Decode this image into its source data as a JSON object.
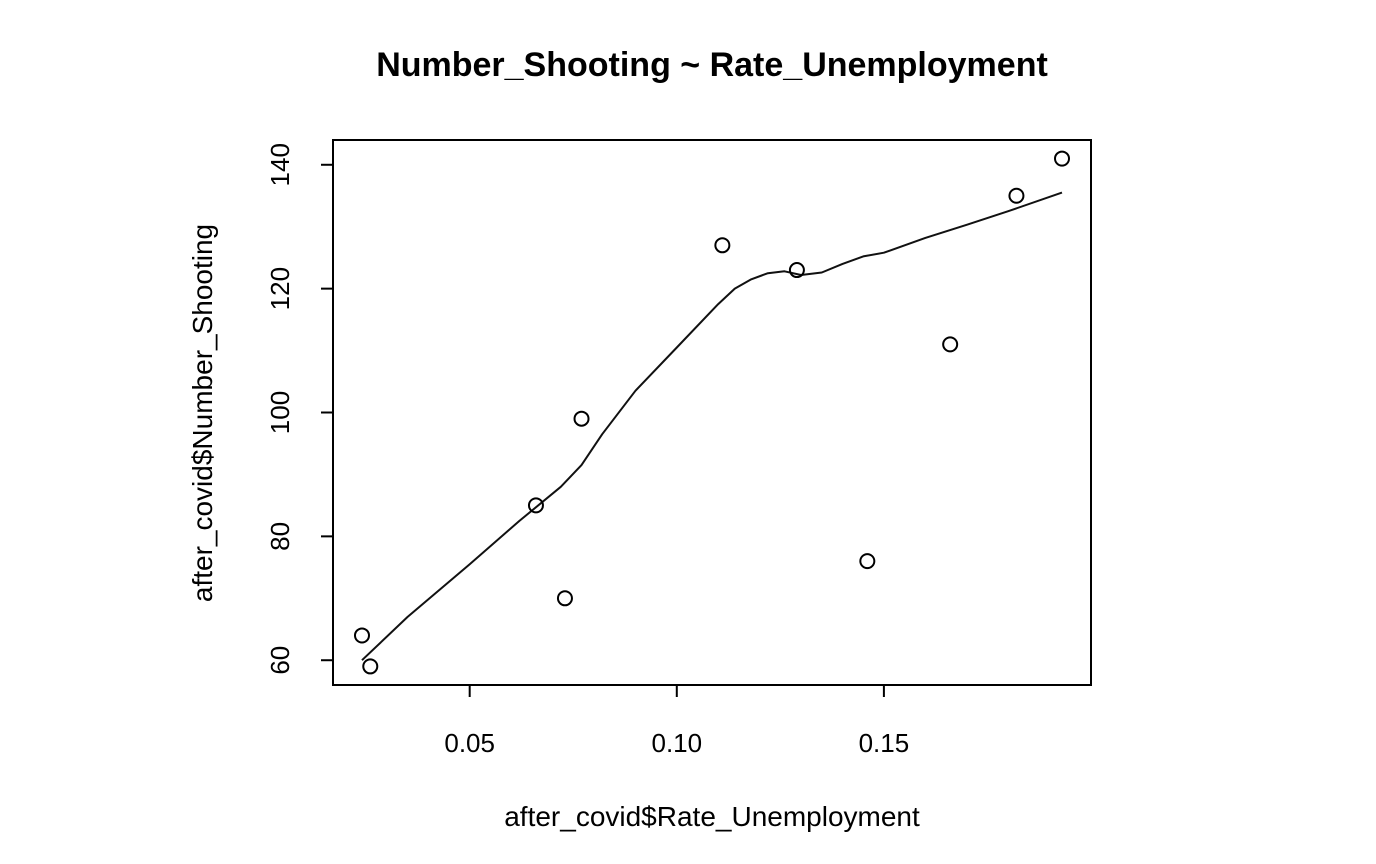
{
  "chart_data": {
    "type": "scatter",
    "title": "Number_Shooting ~ Rate_Unemployment",
    "xlabel": "after_covid$Rate_Unemployment",
    "ylabel": "after_covid$Number_Shooting",
    "xlim": [
      0.017,
      0.2
    ],
    "ylim": [
      56,
      144
    ],
    "x_ticks": [
      0.05,
      0.1,
      0.15
    ],
    "x_tick_labels": [
      "0.05",
      "0.10",
      "0.15"
    ],
    "y_ticks": [
      60,
      80,
      100,
      120,
      140
    ],
    "y_tick_labels": [
      "60",
      "80",
      "100",
      "120",
      "140"
    ],
    "grid": false,
    "points": [
      {
        "x": 0.024,
        "y": 64
      },
      {
        "x": 0.026,
        "y": 59
      },
      {
        "x": 0.066,
        "y": 85
      },
      {
        "x": 0.073,
        "y": 70
      },
      {
        "x": 0.077,
        "y": 99
      },
      {
        "x": 0.111,
        "y": 127
      },
      {
        "x": 0.129,
        "y": 123
      },
      {
        "x": 0.146,
        "y": 76
      },
      {
        "x": 0.166,
        "y": 111
      },
      {
        "x": 0.182,
        "y": 135
      },
      {
        "x": 0.193,
        "y": 141
      }
    ],
    "smooth_line": [
      {
        "x": 0.024,
        "y": 60
      },
      {
        "x": 0.035,
        "y": 67
      },
      {
        "x": 0.05,
        "y": 75.5
      },
      {
        "x": 0.062,
        "y": 82.5
      },
      {
        "x": 0.072,
        "y": 88
      },
      {
        "x": 0.077,
        "y": 91.5
      },
      {
        "x": 0.082,
        "y": 96.5
      },
      {
        "x": 0.09,
        "y": 103.5
      },
      {
        "x": 0.1,
        "y": 110.5
      },
      {
        "x": 0.11,
        "y": 117.5
      },
      {
        "x": 0.114,
        "y": 120
      },
      {
        "x": 0.118,
        "y": 121.5
      },
      {
        "x": 0.122,
        "y": 122.5
      },
      {
        "x": 0.126,
        "y": 122.8
      },
      {
        "x": 0.13,
        "y": 122.2
      },
      {
        "x": 0.135,
        "y": 122.6
      },
      {
        "x": 0.14,
        "y": 124
      },
      {
        "x": 0.145,
        "y": 125.2
      },
      {
        "x": 0.15,
        "y": 125.8
      },
      {
        "x": 0.16,
        "y": 128.2
      },
      {
        "x": 0.17,
        "y": 130.3
      },
      {
        "x": 0.18,
        "y": 132.5
      },
      {
        "x": 0.193,
        "y": 135.5
      }
    ]
  }
}
